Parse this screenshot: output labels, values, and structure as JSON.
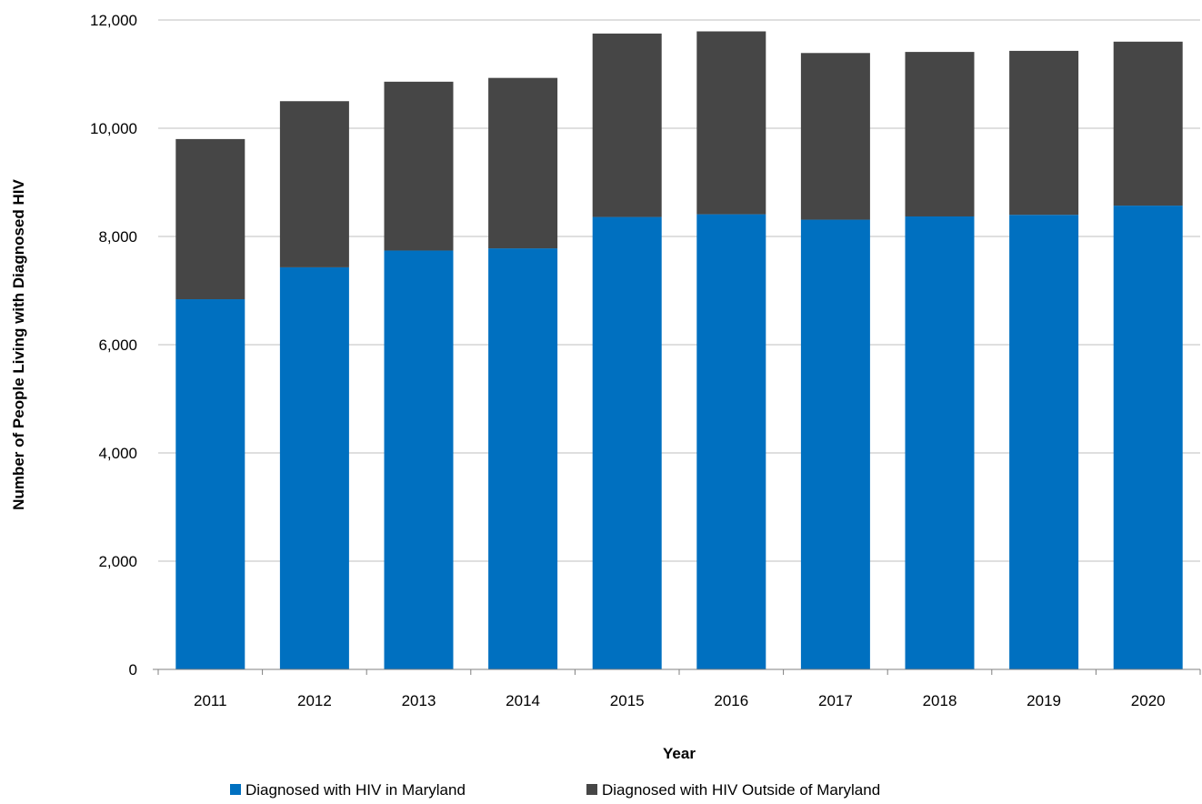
{
  "chart_data": {
    "type": "bar",
    "stacked": true,
    "categories": [
      "2011",
      "2012",
      "2013",
      "2014",
      "2015",
      "2016",
      "2017",
      "2018",
      "2019",
      "2020"
    ],
    "series": [
      {
        "name": "Diagnosed with HIV in Maryland",
        "color": "#0070C0",
        "values": [
          6840,
          7430,
          7740,
          7780,
          8360,
          8410,
          8310,
          8370,
          8400,
          8570
        ]
      },
      {
        "name": "Diagnosed with HIV Outside of Maryland",
        "color": "#464646",
        "values": [
          2960,
          3070,
          3120,
          3150,
          3390,
          3380,
          3080,
          3040,
          3030,
          3030
        ]
      }
    ],
    "xlabel": "Year",
    "ylabel": "Number of People Living with Diagnosed HIV",
    "ylim": [
      0,
      12000
    ],
    "yticks": [
      0,
      2000,
      4000,
      6000,
      8000,
      10000,
      12000
    ],
    "ytick_labels": [
      "0",
      "2,000",
      "4,000",
      "6,000",
      "8,000",
      "10,000",
      "12,000"
    ],
    "grid": true,
    "legend_position": "bottom"
  }
}
